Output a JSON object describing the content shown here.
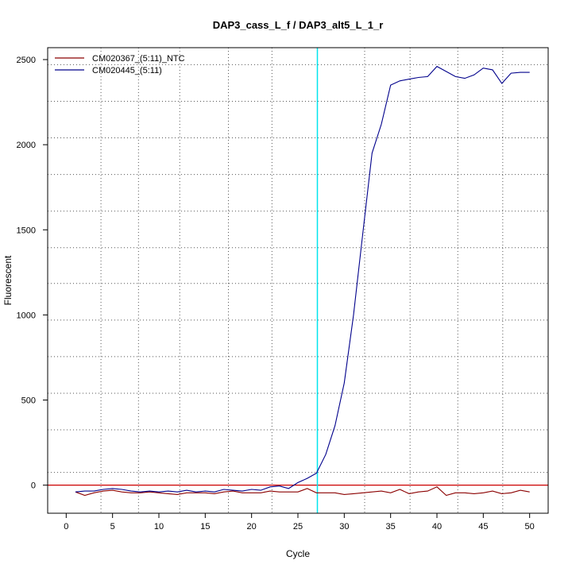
{
  "chart_data": {
    "type": "line",
    "title": "DAP3_cass_L_f / DAP3_alt5_L_1_r",
    "xlabel": "Cycle",
    "ylabel": "Fluorescent",
    "xlim": [
      -2,
      52
    ],
    "ylim": [
      -165,
      2570
    ],
    "x_ticks": [
      0,
      5,
      10,
      15,
      20,
      25,
      30,
      35,
      40,
      45,
      50
    ],
    "y_ticks": [
      0,
      500,
      1000,
      1500,
      2000,
      2500
    ],
    "x_grid": [
      3.75,
      7.8,
      12.25,
      17.5,
      22.2,
      27.1,
      32.2,
      37.1,
      42.25,
      47.1
    ],
    "y_grid": [
      75,
      325,
      540,
      755,
      970,
      1185,
      1395,
      1610,
      1825,
      2040,
      2255,
      2470
    ],
    "grid": true,
    "legend_position": "top-left",
    "threshold": {
      "value": 0,
      "color": "#cc0000"
    },
    "ct_line": {
      "value": 27.1,
      "color": "#00e5ee"
    },
    "series": [
      {
        "name": "CM020367_(5:11)_NTC",
        "color": "#8b0000",
        "x": [
          1,
          2,
          3,
          4,
          5,
          6,
          7,
          8,
          9,
          10,
          11,
          12,
          13,
          14,
          15,
          16,
          17,
          18,
          19,
          20,
          21,
          22,
          23,
          24,
          25,
          26,
          27,
          28,
          29,
          30,
          31,
          32,
          33,
          34,
          35,
          36,
          37,
          38,
          39,
          40,
          41,
          42,
          43,
          44,
          45,
          46,
          47,
          48,
          49,
          50
        ],
        "values": [
          -40,
          -60,
          -45,
          -35,
          -30,
          -40,
          -45,
          -45,
          -40,
          -45,
          -50,
          -55,
          -45,
          -45,
          -45,
          -50,
          -40,
          -35,
          -45,
          -45,
          -45,
          -35,
          -40,
          -40,
          -40,
          -20,
          -45,
          -45,
          -45,
          -55,
          -50,
          -45,
          -40,
          -35,
          -45,
          -25,
          -50,
          -40,
          -35,
          -10,
          -60,
          -45,
          -45,
          -50,
          -45,
          -35,
          -50,
          -45,
          -30,
          -40
        ]
      },
      {
        "name": "CM020445_(5:11)",
        "color": "#00008b",
        "x": [
          1,
          2,
          3,
          4,
          5,
          6,
          7,
          8,
          9,
          10,
          11,
          12,
          13,
          14,
          15,
          16,
          17,
          18,
          19,
          20,
          21,
          22,
          23,
          24,
          25,
          26,
          27,
          28,
          29,
          30,
          31,
          32,
          33,
          34,
          35,
          36,
          37,
          38,
          39,
          40,
          41,
          42,
          43,
          44,
          45,
          46,
          47,
          48,
          49,
          50
        ],
        "values": [
          -40,
          -35,
          -35,
          -25,
          -20,
          -25,
          -35,
          -40,
          -35,
          -40,
          -35,
          -40,
          -30,
          -40,
          -35,
          -40,
          -25,
          -30,
          -35,
          -25,
          -30,
          -10,
          -5,
          -20,
          15,
          40,
          70,
          180,
          350,
          600,
          1000,
          1480,
          1950,
          2120,
          2350,
          2375,
          2385,
          2395,
          2400,
          2460,
          2430,
          2400,
          2390,
          2410,
          2450,
          2440,
          2360,
          2420,
          2425,
          2425
        ]
      }
    ]
  }
}
